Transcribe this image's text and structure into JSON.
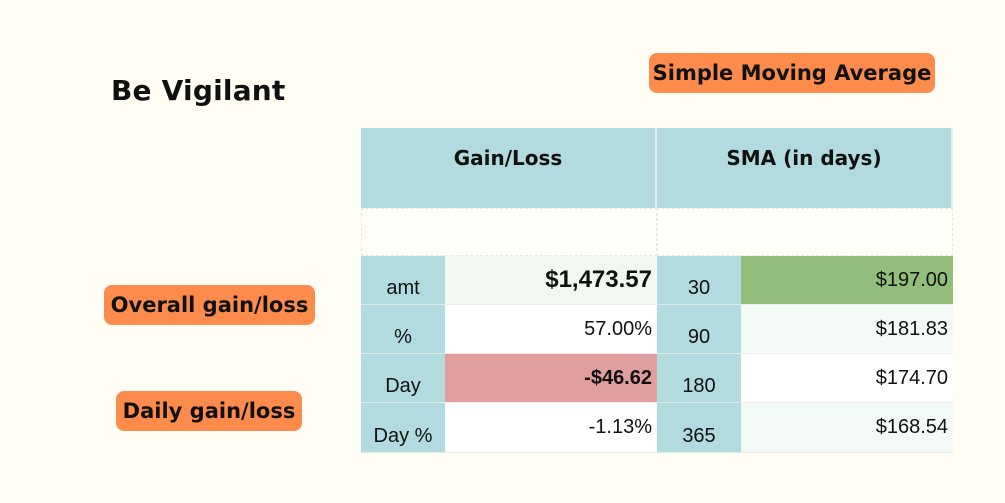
{
  "title": "Be Vigilant",
  "callouts": {
    "sma": "Simple Moving Average",
    "overall": "Overall gain/loss",
    "daily": "Daily gain/loss"
  },
  "table": {
    "headers": {
      "gain_loss": "Gain/Loss",
      "sma": "SMA (in days)"
    },
    "rows": [
      {
        "label": "amt",
        "value": "$1,473.57",
        "days": "30",
        "sma_value": "$197.00"
      },
      {
        "label": "%",
        "value": "57.00%",
        "days": "90",
        "sma_value": "$181.83"
      },
      {
        "label": "Day",
        "value": "-$46.62",
        "days": "180",
        "sma_value": "$174.70"
      },
      {
        "label": "Day %",
        "value": "-1.13%",
        "days": "365",
        "sma_value": "$168.54"
      }
    ]
  },
  "colors": {
    "background": "#fffdf4",
    "callout": "#fc8b4c",
    "header": "#b2dbe0",
    "negative": "#e09e9e",
    "positive": "#93bd7a"
  }
}
